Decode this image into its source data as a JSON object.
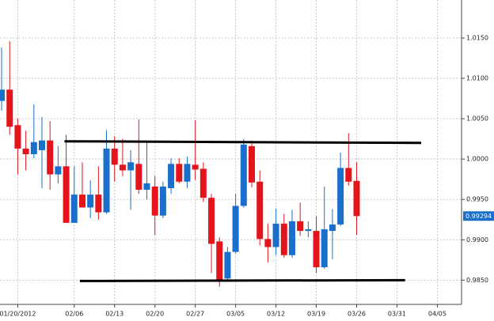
{
  "chart_data": {
    "type": "candlestick",
    "x": [
      0,
      1,
      2,
      3,
      4,
      5,
      6,
      7,
      8,
      9,
      10,
      11,
      12,
      13,
      14,
      15,
      16,
      17,
      18,
      19,
      20,
      21,
      22,
      23,
      24,
      25,
      26,
      27,
      28,
      29,
      30,
      31,
      32,
      33,
      34,
      35,
      36,
      37,
      38,
      39,
      40,
      41,
      42,
      43,
      44
    ],
    "open": [
      1.0072,
      1.0086,
      1.0042,
      1.0013,
      1.0006,
      1.0011,
      1.0023,
      0.9981,
      0.9991,
      0.9921,
      0.9956,
      0.994,
      0.9956,
      0.9934,
      1.0013,
      0.9993,
      0.9986,
      0.9994,
      0.9962,
      0.9966,
      0.993,
      0.9964,
      0.9994,
      0.9972,
      0.9993,
      0.9988,
      0.9952,
      0.9898,
      0.9852,
      0.9885,
      0.9942,
      1.0016,
      0.9972,
      0.9901,
      0.9891,
      0.992,
      0.9881,
      0.9923,
      0.9911,
      0.9911,
      0.9866,
      0.9911,
      0.9919,
      0.9989,
      0.9973
    ],
    "high": [
      1.0138,
      1.0146,
      1.005,
      1.0035,
      1.0068,
      1.0052,
      1.0047,
      1.0016,
      1.003,
      0.9991,
      0.9996,
      0.9974,
      0.9991,
      1.0036,
      1.0028,
      1.0025,
      1.0011,
      1.0049,
      1.0021,
      0.9979,
      0.9972,
      1.0001,
      1.0001,
      1.0003,
      1.0048,
      0.9996,
      0.9957,
      0.9903,
      0.9891,
      0.9957,
      1.0025,
      1.0023,
      0.9986,
      0.992,
      0.9939,
      0.9932,
      0.9937,
      0.9946,
      0.9923,
      0.9929,
      0.9966,
      0.9938,
      1.0008,
      1.0032,
      0.9996
    ],
    "low": [
      1.006,
      1.003,
      0.9981,
      0.9986,
      1.0001,
      0.9964,
      0.9962,
      0.997,
      0.9921,
      0.9921,
      0.994,
      0.9927,
      0.9925,
      0.9932,
      0.9972,
      0.9979,
      0.9937,
      0.9957,
      0.995,
      0.9906,
      0.9927,
      0.9957,
      0.997,
      0.9964,
      0.9974,
      0.9947,
      0.9859,
      0.9842,
      0.9848,
      0.9883,
      0.994,
      0.9965,
      0.9893,
      0.9872,
      0.9881,
      0.9878,
      0.9878,
      0.9905,
      0.9903,
      0.9859,
      0.9864,
      0.9876,
      0.9917,
      0.9967,
      0.9906
    ],
    "close": [
      1.0086,
      1.004,
      1.0013,
      1.0006,
      1.0021,
      1.0023,
      0.9981,
      0.9991,
      0.9921,
      0.9956,
      0.994,
      0.9956,
      0.9934,
      1.0013,
      0.9993,
      0.9986,
      0.9996,
      0.9962,
      0.997,
      0.993,
      0.9966,
      0.9994,
      0.9972,
      0.9994,
      0.9987,
      0.9952,
      0.9895,
      0.9849,
      0.9885,
      0.9942,
      1.0018,
      0.9971,
      0.9901,
      0.9891,
      0.992,
      0.9881,
      0.9923,
      0.9911,
      0.9913,
      0.9866,
      0.9913,
      0.9919,
      0.9989,
      0.9972,
      0.99294
    ],
    "up_color": "#1a6fcc",
    "down_color": "#e3141b",
    "current_price": 0.99294,
    "xlim": [
      -0.2,
      57
    ],
    "ylim": [
      0.982,
      1.0197
    ],
    "xticks": [
      {
        "value": 2,
        "label": "01/20/2012"
      },
      {
        "value": 9,
        "label": "02/06"
      },
      {
        "value": 14,
        "label": "02/13"
      },
      {
        "value": 19,
        "label": "02/20"
      },
      {
        "value": 24,
        "label": "02/27"
      },
      {
        "value": 29,
        "label": "03/05"
      },
      {
        "value": 34,
        "label": "03/12"
      },
      {
        "value": 39,
        "label": "03/19"
      },
      {
        "value": 44,
        "label": "03/26"
      },
      {
        "value": 49,
        "label": "03/31"
      },
      {
        "value": 54,
        "label": "04/05"
      }
    ],
    "yticks": [
      {
        "value": 0.985,
        "label": "0.9850"
      },
      {
        "value": 0.99,
        "label": "0.9900"
      },
      {
        "value": 0.995,
        "label": "0.9950"
      },
      {
        "value": 1.0,
        "label": "1.0000"
      },
      {
        "value": 1.005,
        "label": "1.0050"
      },
      {
        "value": 1.01,
        "label": "1.0100"
      },
      {
        "value": 1.015,
        "label": "1.0150"
      }
    ],
    "grid": true,
    "trendlines": [
      {
        "x": [
          7.8,
          52
        ],
        "y": [
          1.0022,
          1.002
        ]
      },
      {
        "x": [
          9.7,
          50
        ],
        "y": [
          0.9849,
          0.985
        ]
      }
    ]
  }
}
